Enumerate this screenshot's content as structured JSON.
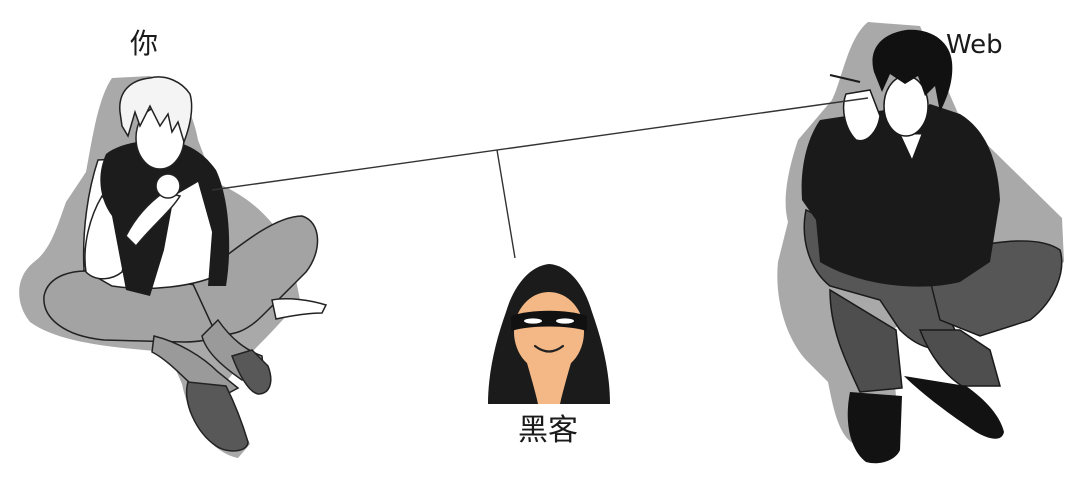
{
  "labels": {
    "you": "你",
    "web": "Web",
    "hacker": "黑客"
  }
}
